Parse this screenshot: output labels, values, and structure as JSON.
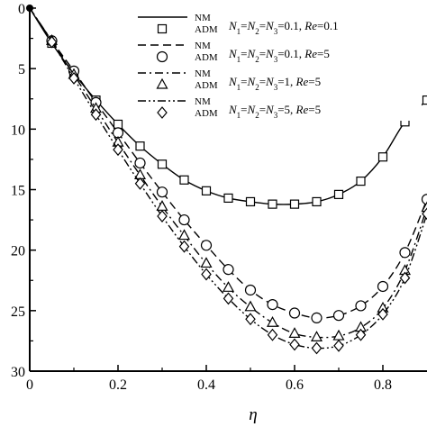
{
  "chart_data": {
    "type": "line",
    "title": "",
    "xlabel": "η",
    "ylabel": "",
    "xlim": [
      0,
      0.9
    ],
    "ylim": [
      30,
      0
    ],
    "y_axis_inverted": true,
    "x_ticks": [
      "0",
      "0.2",
      "0.4",
      "0.6",
      "0.8"
    ],
    "y_ticks": [
      "0",
      "5",
      "10",
      "15",
      "20",
      "25",
      "30"
    ],
    "grid": false,
    "legend_position": "top-right",
    "legend": [
      {
        "method_line": "NM",
        "method_marker": "ADM",
        "params": "N1=N2=N3=0.1, Re=0.1"
      },
      {
        "method_line": "NM",
        "method_marker": "ADM",
        "params": "N1=N2=N3=0.1, Re=5"
      },
      {
        "method_line": "NM",
        "method_marker": "ADM",
        "params": "N1=N2=N3=1, Re=5"
      },
      {
        "method_line": "NM",
        "method_marker": "ADM",
        "params": "N1=N2=N3=5, Re=5"
      }
    ],
    "series": [
      {
        "name": "N1=N2=N3=0.1, Re=0.1",
        "line_style": "solid",
        "marker": "square",
        "x": [
          0,
          0.05,
          0.1,
          0.15,
          0.2,
          0.25,
          0.3,
          0.35,
          0.4,
          0.45,
          0.5,
          0.55,
          0.6,
          0.65,
          0.7,
          0.75,
          0.8,
          0.85,
          0.9
        ],
        "y": [
          0,
          2.9,
          5.4,
          7.6,
          9.6,
          11.4,
          12.9,
          14.2,
          15.1,
          15.7,
          16.0,
          16.2,
          16.2,
          16.0,
          15.4,
          14.3,
          12.3,
          9.4,
          7.6
        ]
      },
      {
        "name": "N1=N2=N3=0.1, Re=5",
        "line_style": "dashed",
        "marker": "circle",
        "x": [
          0,
          0.05,
          0.1,
          0.15,
          0.2,
          0.25,
          0.3,
          0.35,
          0.4,
          0.45,
          0.5,
          0.55,
          0.6,
          0.65,
          0.7,
          0.75,
          0.8,
          0.85,
          0.9
        ],
        "y": [
          0,
          2.7,
          5.2,
          7.8,
          10.3,
          12.8,
          15.2,
          17.5,
          19.6,
          21.6,
          23.3,
          24.5,
          25.2,
          25.6,
          25.4,
          24.6,
          23.0,
          20.2,
          15.8
        ]
      },
      {
        "name": "N1=N2=N3=1, Re=5",
        "line_style": "dash-dot",
        "marker": "triangle",
        "x": [
          0,
          0.05,
          0.1,
          0.15,
          0.2,
          0.25,
          0.3,
          0.35,
          0.4,
          0.45,
          0.5,
          0.55,
          0.6,
          0.65,
          0.7,
          0.75,
          0.8,
          0.85,
          0.9
        ],
        "y": [
          0,
          2.7,
          5.5,
          8.3,
          11.1,
          13.8,
          16.4,
          18.8,
          21.1,
          23.1,
          24.7,
          26.0,
          26.9,
          27.2,
          27.1,
          26.4,
          24.8,
          21.7,
          16.5
        ]
      },
      {
        "name": "N1=N2=N3=5, Re=5",
        "line_style": "dash-dot-dot",
        "marker": "diamond",
        "x": [
          0,
          0.05,
          0.1,
          0.15,
          0.2,
          0.25,
          0.3,
          0.35,
          0.4,
          0.45,
          0.5,
          0.55,
          0.6,
          0.65,
          0.7,
          0.75,
          0.8,
          0.85,
          0.9
        ],
        "y": [
          0,
          2.8,
          5.8,
          8.8,
          11.7,
          14.5,
          17.2,
          19.7,
          22.0,
          24.0,
          25.7,
          27.0,
          27.8,
          28.1,
          27.9,
          27.0,
          25.3,
          22.3,
          17.0
        ]
      }
    ]
  }
}
